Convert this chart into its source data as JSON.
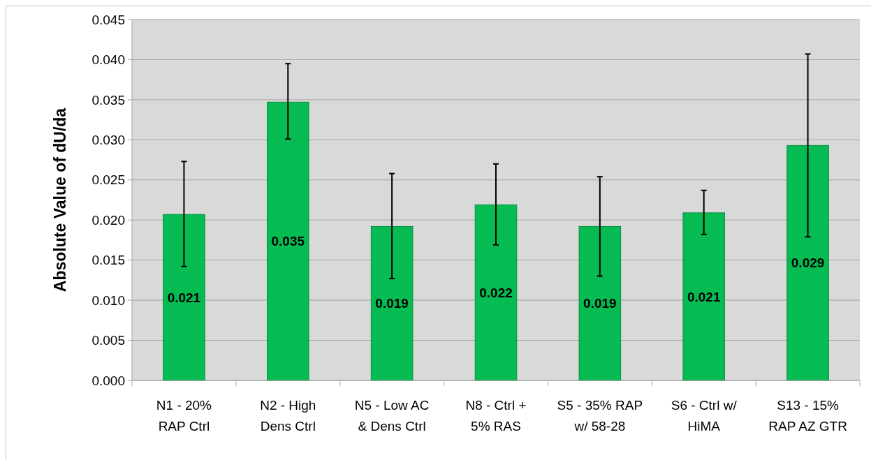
{
  "chart_data": {
    "type": "bar",
    "ylabel": "Absolute Value of dU/da",
    "categories": [
      "N1 - 20%\nRAP Ctrl",
      "N2 - High\nDens Ctrl",
      "N5 - Low AC\n& Dens Ctrl",
      "N8 - Ctrl +\n5% RAS",
      "S5 - 35% RAP\nw/ 58-28",
      "S6 - Ctrl w/\nHiMA",
      "S13 - 15%\nRAP AZ GTR"
    ],
    "values": [
      0.0207,
      0.0347,
      0.0192,
      0.0219,
      0.0192,
      0.0209,
      0.0293
    ],
    "value_labels": [
      "0.021",
      "0.035",
      "0.019",
      "0.022",
      "0.019",
      "0.021",
      "0.029"
    ],
    "errors": [
      [
        0.0142,
        0.0273
      ],
      [
        0.0301,
        0.0395
      ],
      [
        0.0127,
        0.0258
      ],
      [
        0.0169,
        0.027
      ],
      [
        0.013,
        0.0254
      ],
      [
        0.0182,
        0.0237
      ],
      [
        0.0179,
        0.0407
      ]
    ],
    "color": "#07bb53",
    "ylim": [
      0,
      0.045
    ],
    "yticks": [
      {
        "value": 0,
        "label": "0.000"
      },
      {
        "value": 0.005,
        "label": "0.005"
      },
      {
        "value": 0.01,
        "label": "0.010"
      },
      {
        "value": 0.015,
        "label": "0.015"
      },
      {
        "value": 0.02,
        "label": "0.020"
      },
      {
        "value": 0.025,
        "label": "0.025"
      },
      {
        "value": 0.03,
        "label": "0.030"
      },
      {
        "value": 0.035,
        "label": "0.035"
      },
      {
        "value": 0.04,
        "label": "0.040"
      },
      {
        "value": 0.045,
        "label": "0.045"
      }
    ],
    "grid": "y"
  }
}
